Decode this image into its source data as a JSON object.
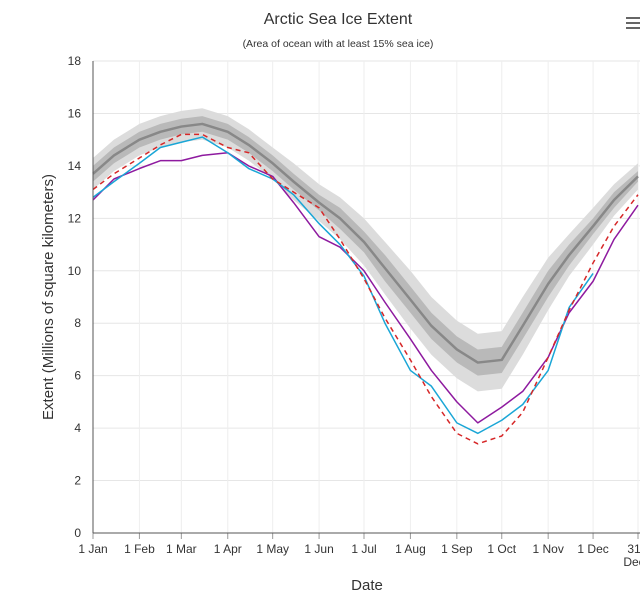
{
  "chart_data": {
    "type": "line",
    "title": "Arctic Sea Ice Extent",
    "subtitle": "(Area of ocean with at least 15% sea ice)",
    "x_label": "Date",
    "y_label": "Extent (Millions of square kilometers)",
    "x": [
      1,
      15,
      32,
      46,
      60,
      74,
      91,
      105,
      121,
      135,
      152,
      166,
      182,
      196,
      213,
      227,
      244,
      258,
      274,
      288,
      305,
      319,
      335,
      349,
      365
    ],
    "xlim": [
      1,
      365
    ],
    "xticks": [
      {
        "value": 1,
        "label": "1 Jan"
      },
      {
        "value": 32,
        "label": "1 Feb"
      },
      {
        "value": 60,
        "label": "1 Mar"
      },
      {
        "value": 91,
        "label": "1 Apr"
      },
      {
        "value": 121,
        "label": "1 May"
      },
      {
        "value": 152,
        "label": "1 Jun"
      },
      {
        "value": 182,
        "label": "1 Jul"
      },
      {
        "value": 213,
        "label": "1 Aug"
      },
      {
        "value": 244,
        "label": "1 Sep"
      },
      {
        "value": 274,
        "label": "1 Oct"
      },
      {
        "value": 305,
        "label": "1 Nov"
      },
      {
        "value": 335,
        "label": "1 Dec"
      },
      {
        "value": 365,
        "label": "31 Dec"
      }
    ],
    "ylim": [
      0,
      18
    ],
    "yticks": [
      0,
      2,
      4,
      6,
      8,
      10,
      12,
      14,
      16,
      18
    ],
    "grid": true,
    "bands": [
      {
        "color": "#dcdcdc",
        "upper": [
          14.3,
          15.0,
          15.6,
          15.9,
          16.1,
          16.2,
          15.9,
          15.4,
          14.7,
          14.1,
          13.3,
          12.8,
          12.0,
          11.1,
          10.0,
          9.0,
          8.1,
          7.6,
          7.7,
          9.0,
          10.5,
          11.4,
          12.4,
          13.3,
          14.1
        ],
        "lower": [
          13.1,
          13.8,
          14.4,
          14.7,
          14.9,
          15.0,
          14.7,
          14.2,
          13.5,
          12.7,
          11.9,
          11.2,
          10.2,
          9.1,
          7.8,
          6.8,
          5.9,
          5.4,
          5.5,
          6.8,
          8.5,
          9.8,
          11.0,
          12.1,
          13.1
        ]
      },
      {
        "color": "#b9b9b9",
        "upper": [
          14.0,
          14.7,
          15.3,
          15.6,
          15.8,
          15.9,
          15.6,
          15.1,
          14.4,
          13.7,
          12.9,
          12.4,
          11.5,
          10.6,
          9.4,
          8.4,
          7.5,
          7.0,
          7.1,
          8.4,
          10.0,
          11.0,
          12.0,
          13.0,
          13.8
        ],
        "lower": [
          13.4,
          14.1,
          14.7,
          15.0,
          15.2,
          15.3,
          15.0,
          14.5,
          13.8,
          13.1,
          12.3,
          11.6,
          10.7,
          9.6,
          8.4,
          7.4,
          6.5,
          6.0,
          6.1,
          7.4,
          9.0,
          10.2,
          11.4,
          12.4,
          13.4
        ]
      }
    ],
    "series": [
      {
        "color": "#888888",
        "width": 2.5,
        "values": [
          13.7,
          14.4,
          15.0,
          15.3,
          15.5,
          15.6,
          15.3,
          14.8,
          14.1,
          13.4,
          12.6,
          12.0,
          11.1,
          10.1,
          8.9,
          7.9,
          7.0,
          6.5,
          6.6,
          7.9,
          9.5,
          10.6,
          11.7,
          12.7,
          13.6
        ]
      },
      {
        "color": "#8e1a9f",
        "width": 1.5,
        "values": [
          12.7,
          13.5,
          13.9,
          14.2,
          14.2,
          14.4,
          14.5,
          14.0,
          13.6,
          12.6,
          11.3,
          10.9,
          10.0,
          8.8,
          7.4,
          6.2,
          5.0,
          4.2,
          4.8,
          5.4,
          6.7,
          8.4,
          9.6,
          11.2,
          12.5
        ]
      },
      {
        "color": "#1aa6d6",
        "width": 1.5,
        "values": [
          12.8,
          13.4,
          14.1,
          14.7,
          14.9,
          15.1,
          14.5,
          13.9,
          13.5,
          12.9,
          11.8,
          11.0,
          9.8,
          8.0,
          6.2,
          5.6,
          4.2,
          3.8,
          4.3,
          4.9,
          6.2,
          8.6,
          9.9,
          null,
          null
        ]
      },
      {
        "color": "#d62728",
        "width": 1.5,
        "dash": true,
        "values": [
          13.1,
          13.7,
          14.3,
          14.8,
          15.2,
          15.2,
          14.7,
          14.5,
          13.5,
          13.0,
          12.4,
          11.2,
          9.7,
          8.2,
          6.6,
          5.2,
          3.8,
          3.4,
          3.7,
          4.6,
          6.7,
          8.5,
          10.3,
          11.7,
          12.9
        ]
      }
    ]
  }
}
